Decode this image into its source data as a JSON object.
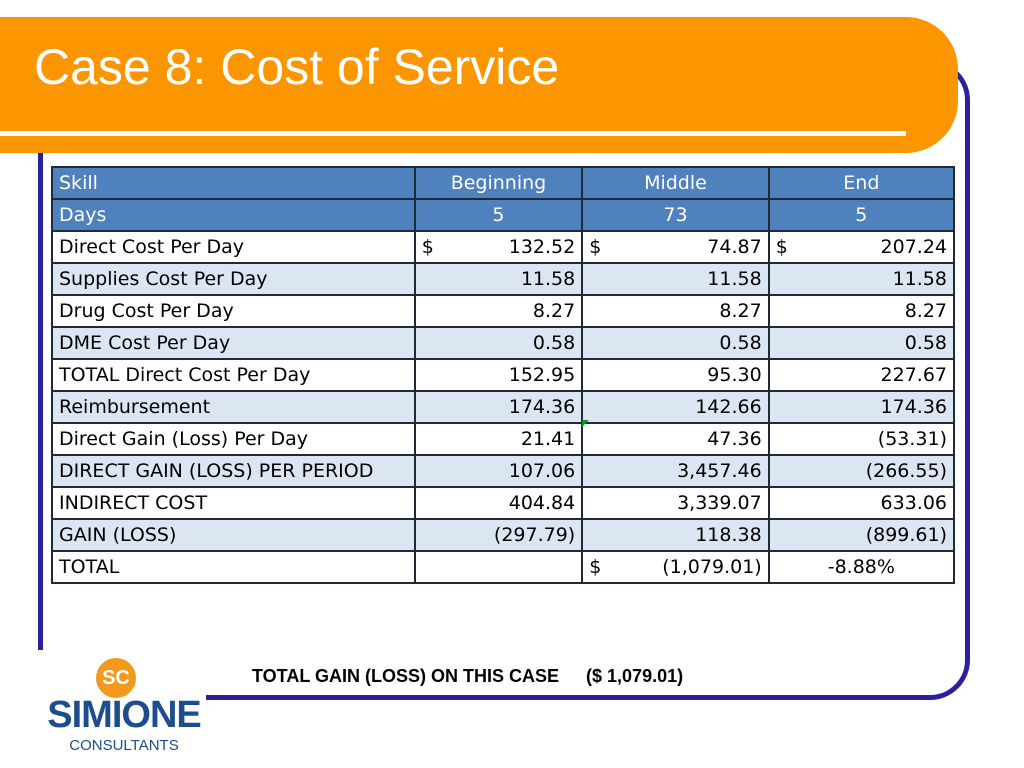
{
  "slide": {
    "title": "Case 8: Cost of Service",
    "summary_label": "TOTAL GAIN (LOSS) ON THIS CASE",
    "summary_value": "($ 1,079.01)"
  },
  "logo": {
    "mark": "SC",
    "name": "SIMIONE",
    "subtitle": "CONSULTANTS"
  },
  "colors": {
    "banner": "#fb9600",
    "frame": "#2a1f9c",
    "header_row": "#4f81bd",
    "light_row": "#dce6f2"
  },
  "table": {
    "header": [
      "Skill",
      "Beginning",
      "Middle",
      "End"
    ],
    "days": [
      "Days",
      "5",
      "73",
      "5"
    ],
    "rows": [
      {
        "label": "Direct Cost Per Day",
        "c1_prefix": "$",
        "c1": "132.52",
        "c2_prefix": "$",
        "c2": "74.87",
        "c3_prefix": "$",
        "c3": "207.24"
      },
      {
        "label": "Supplies Cost Per Day",
        "c1": "11.58",
        "c2": "11.58",
        "c3": "11.58"
      },
      {
        "label": "Drug Cost Per Day",
        "c1": "8.27",
        "c2": "8.27",
        "c3": "8.27"
      },
      {
        "label": "DME Cost Per Day",
        "c1": "0.58",
        "c2": "0.58",
        "c3": "0.58"
      },
      {
        "label": "TOTAL Direct Cost Per Day",
        "c1": "152.95",
        "c2": "95.30",
        "c3": "227.67"
      },
      {
        "label": "Reimbursement",
        "c1": "174.36",
        "c2": "142.66",
        "c3": "174.36"
      },
      {
        "label": "Direct Gain (Loss) Per Day",
        "c1": "21.41",
        "c2": "47.36",
        "c3": "(53.31)"
      },
      {
        "label": "DIRECT GAIN (LOSS) PER PERIOD",
        "c1": "107.06",
        "c2": "3,457.46",
        "c3": "(266.55)"
      },
      {
        "label": "INDIRECT COST",
        "c1": "404.84",
        "c2": "3,339.07",
        "c3": "633.06"
      },
      {
        "label": "GAIN (LOSS)",
        "c1": "(297.79)",
        "c2": "118.38",
        "c3": "(899.61)"
      },
      {
        "label": "TOTAL",
        "c1": "",
        "c2_prefix": "$",
        "c2": "(1,079.01)",
        "c3": "-8.88%"
      }
    ]
  }
}
